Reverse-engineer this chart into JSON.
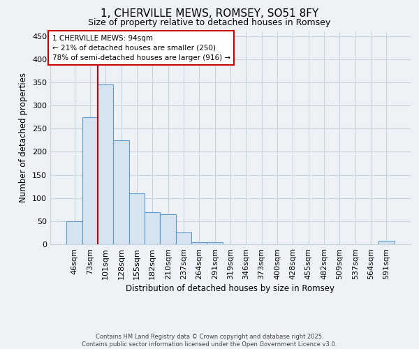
{
  "title": "1, CHERVILLE MEWS, ROMSEY, SO51 8FY",
  "subtitle": "Size of property relative to detached houses in Romsey",
  "xlabel": "Distribution of detached houses by size in Romsey",
  "ylabel": "Number of detached properties",
  "categories": [
    "46sqm",
    "73sqm",
    "101sqm",
    "128sqm",
    "155sqm",
    "182sqm",
    "210sqm",
    "237sqm",
    "264sqm",
    "291sqm",
    "319sqm",
    "346sqm",
    "373sqm",
    "400sqm",
    "428sqm",
    "455sqm",
    "482sqm",
    "509sqm",
    "537sqm",
    "564sqm",
    "591sqm"
  ],
  "values": [
    50,
    275,
    345,
    225,
    110,
    70,
    65,
    25,
    5,
    5,
    0,
    0,
    0,
    0,
    0,
    0,
    0,
    0,
    0,
    0,
    8
  ],
  "bar_color": "#d6e4f0",
  "bar_edge_color": "#5b9bd5",
  "vline_color": "#cc0000",
  "vline_x_index": 2,
  "annotation_text": "1 CHERVILLE MEWS: 94sqm\n← 21% of detached houses are smaller (250)\n78% of semi-detached houses are larger (916) →",
  "annotation_box_facecolor": "#ffffff",
  "annotation_box_edgecolor": "#cc0000",
  "ylim": [
    0,
    460
  ],
  "yticks": [
    0,
    50,
    100,
    150,
    200,
    250,
    300,
    350,
    400,
    450
  ],
  "grid_color": "#c8d4e0",
  "footer_line1": "Contains HM Land Registry data © Crown copyright and database right 2025.",
  "footer_line2": "Contains public sector information licensed under the Open Government Licence v3.0.",
  "bg_color": "#eef2f7",
  "plot_bg_color": "#eef2f7"
}
